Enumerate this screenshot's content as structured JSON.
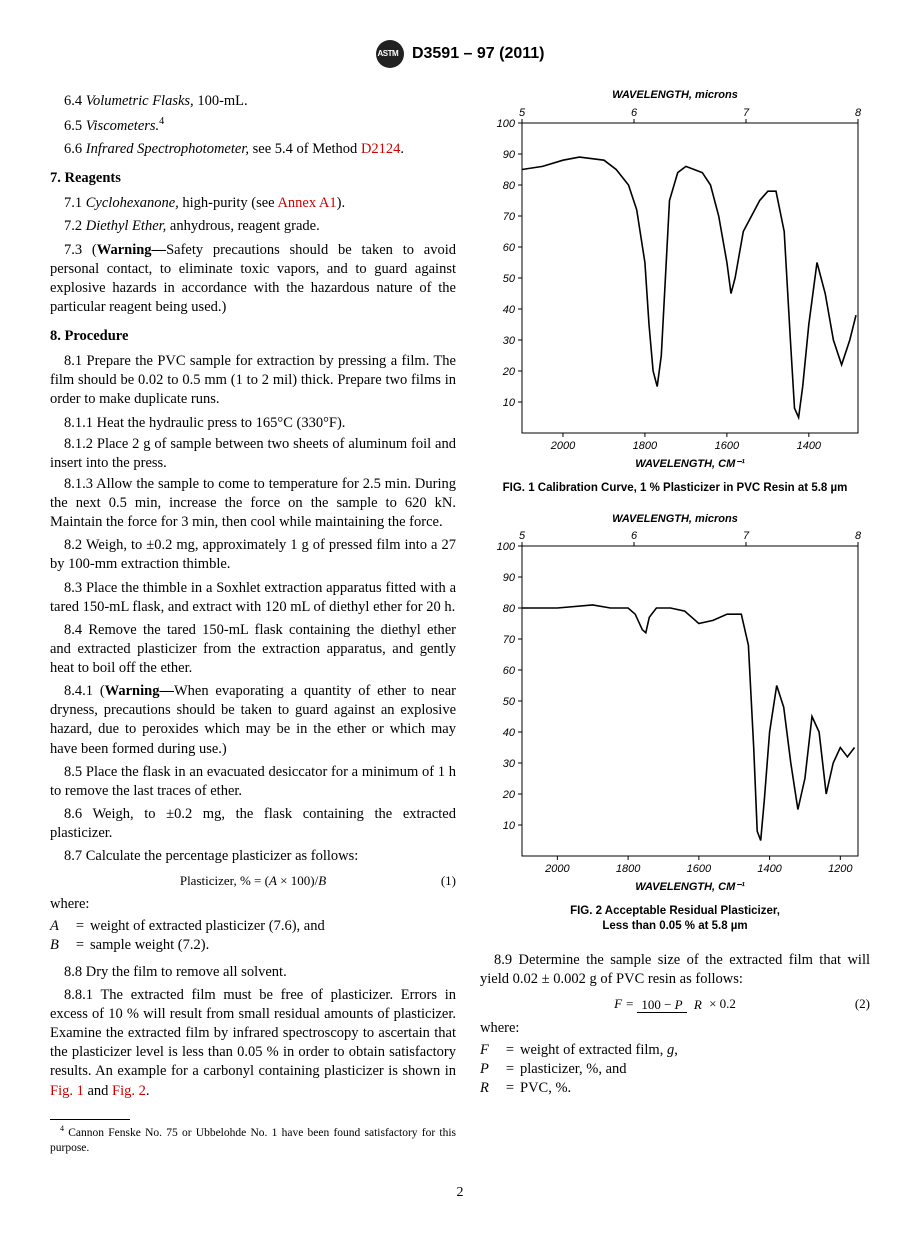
{
  "header": {
    "designation": "D3591 – 97 (2011)"
  },
  "left": {
    "p64": {
      "num": "6.4",
      "label": "Volumetric Flasks,",
      "rest": " 100-mL."
    },
    "p65": {
      "num": "6.5",
      "label": "Viscometers.",
      "sup": "4"
    },
    "p66": {
      "num": "6.6",
      "label": "Infrared Spectrophotometer,",
      "rest": " see 5.4 of Method ",
      "link": "D2124",
      "end": "."
    },
    "s7": {
      "title": "7.  Reagents"
    },
    "p71": {
      "num": "7.1",
      "label": "Cyclohexanone,",
      "rest": " high-purity (see ",
      "link": "Annex A1",
      "end": ")."
    },
    "p72": {
      "num": "7.2",
      "label": "Diethyl Ether,",
      "rest": " anhydrous, reagent grade."
    },
    "p73": {
      "num": "7.3",
      "text": "(Warning—Safety precautions should be taken to avoid personal contact, to eliminate toxic vapors, and to guard against explosive hazards in accordance with the hazardous nature of the particular reagent being used.)"
    },
    "s8": {
      "title": "8.  Procedure"
    },
    "p81": {
      "num": "8.1",
      "text": "Prepare the PVC sample for extraction by pressing a film. The film should be 0.02 to 0.5 mm (1 to 2 mil) thick. Prepare two films in order to make duplicate runs."
    },
    "p811": {
      "num": "8.1.1",
      "text": "Heat the hydraulic press to 165°C (330°F)."
    },
    "p812": {
      "num": "8.1.2",
      "text": "Place 2 g of sample between two sheets of aluminum foil and insert into the press."
    },
    "p813": {
      "num": "8.1.3",
      "text": "Allow the sample to come to temperature for 2.5 min. During the next 0.5 min, increase the force on the sample to 620 kN. Maintain the force for 3 min, then cool while maintaining the force."
    },
    "p82": {
      "num": "8.2",
      "text": "Weigh, to ±0.2 mg, approximately 1 g of pressed film into a 27 by 100-mm extraction thimble."
    },
    "p83": {
      "num": "8.3",
      "text": "Place the thimble in a Soxhlet extraction apparatus fitted with a tared 150-mL flask, and extract with 120 mL of diethyl ether for 20 h."
    },
    "p84": {
      "num": "8.4",
      "text": "Remove the tared 150-mL flask containing the diethyl ether and extracted plasticizer from the extraction apparatus, and gently heat to boil off the ether."
    },
    "p841": {
      "num": "8.4.1",
      "text": "(Warning—When evaporating a quantity of ether to near dryness, precautions should be taken to guard against an explosive hazard, due to peroxides which may be in the ether or which may have been formed during use.)"
    },
    "p85": {
      "num": "8.5",
      "text": "Place the flask in an evacuated desiccator for a minimum of 1 h to remove the last traces of ether."
    },
    "p86": {
      "num": "8.6",
      "text": "Weigh, to ±0.2 mg, the flask containing the extracted plasticizer."
    },
    "p87": {
      "num": "8.7",
      "text": "Calculate the percentage plasticizer as follows:"
    },
    "eq1": {
      "text": "Plasticizer, % = (A × 100)/B",
      "num": "(1)"
    },
    "where1": "where:",
    "varA": {
      "sym": "A",
      "def": "weight of extracted plasticizer (7.6), and"
    },
    "varB": {
      "sym": "B",
      "def": "sample weight (7.2)."
    },
    "p88": {
      "num": "8.8",
      "text": "Dry the film to remove all solvent."
    },
    "p881": {
      "num": "8.8.1",
      "text_a": "The extracted film must be free of plasticizer. Errors in excess of 10 % will result from small residual amounts of plasticizer. Examine the extracted film by infrared spectroscopy to ascertain that the plasticizer level is less than 0.05 % in order to obtain satisfactory results. An example for a carbonyl containing plasticizer is shown in ",
      "link1": "Fig. 1",
      "mid": " and ",
      "link2": "Fig. 2",
      "end": "."
    },
    "footnote4": "Cannon Fenske No. 75 or Ubbelohde No. 1 have been found satisfactory for this purpose."
  },
  "right": {
    "wavelength_label": "WAVELENGTH, microns",
    "wavenumber_label": "WAVELENGTH, CM⁻¹",
    "fig1_caption": "FIG. 1 Calibration Curve, 1 % Plasticizer in PVC Resin at 5.8 µm",
    "fig2_caption_l1": "FIG. 2 Acceptable Residual Plasticizer,",
    "fig2_caption_l2": "Less than 0.05 % at 5.8 µm",
    "chart1": {
      "type": "line",
      "top_ticks": [
        5,
        6,
        7,
        8
      ],
      "x_ticks": [
        2000,
        1800,
        1600,
        1400
      ],
      "x_range": [
        2100,
        1280
      ],
      "y_ticks": [
        10,
        20,
        30,
        40,
        50,
        60,
        70,
        80,
        90,
        100
      ],
      "y_range": [
        0,
        100
      ],
      "line_color": "#000000",
      "line_width": 1.6,
      "background": "#ffffff",
      "points": [
        [
          2100,
          85
        ],
        [
          2050,
          86
        ],
        [
          2000,
          88
        ],
        [
          1960,
          89
        ],
        [
          1900,
          88
        ],
        [
          1870,
          85
        ],
        [
          1840,
          80
        ],
        [
          1820,
          72
        ],
        [
          1800,
          55
        ],
        [
          1790,
          35
        ],
        [
          1780,
          20
        ],
        [
          1770,
          15
        ],
        [
          1760,
          25
        ],
        [
          1750,
          50
        ],
        [
          1740,
          75
        ],
        [
          1720,
          84
        ],
        [
          1700,
          86
        ],
        [
          1680,
          85
        ],
        [
          1660,
          84
        ],
        [
          1640,
          80
        ],
        [
          1620,
          70
        ],
        [
          1600,
          55
        ],
        [
          1590,
          45
        ],
        [
          1580,
          50
        ],
        [
          1560,
          65
        ],
        [
          1540,
          70
        ],
        [
          1520,
          75
        ],
        [
          1500,
          78
        ],
        [
          1480,
          78
        ],
        [
          1460,
          65
        ],
        [
          1445,
          30
        ],
        [
          1435,
          8
        ],
        [
          1425,
          5
        ],
        [
          1415,
          15
        ],
        [
          1400,
          35
        ],
        [
          1380,
          55
        ],
        [
          1360,
          45
        ],
        [
          1340,
          30
        ],
        [
          1320,
          22
        ],
        [
          1300,
          30
        ],
        [
          1285,
          38
        ]
      ]
    },
    "chart2": {
      "type": "line",
      "top_ticks": [
        5,
        6,
        7,
        8
      ],
      "x_ticks": [
        2000,
        1800,
        1600,
        1400,
        1200
      ],
      "x_range": [
        2100,
        1150
      ],
      "y_ticks": [
        10,
        20,
        30,
        40,
        50,
        60,
        70,
        80,
        90,
        100
      ],
      "y_range": [
        0,
        100
      ],
      "line_color": "#000000",
      "line_width": 1.6,
      "background": "#ffffff",
      "points": [
        [
          2100,
          80
        ],
        [
          2000,
          80
        ],
        [
          1900,
          81
        ],
        [
          1850,
          80
        ],
        [
          1800,
          80
        ],
        [
          1780,
          78
        ],
        [
          1760,
          73
        ],
        [
          1750,
          72
        ],
        [
          1740,
          77
        ],
        [
          1720,
          80
        ],
        [
          1700,
          80
        ],
        [
          1680,
          80
        ],
        [
          1640,
          79
        ],
        [
          1620,
          77
        ],
        [
          1600,
          75
        ],
        [
          1560,
          76
        ],
        [
          1520,
          78
        ],
        [
          1480,
          78
        ],
        [
          1460,
          68
        ],
        [
          1445,
          35
        ],
        [
          1435,
          8
        ],
        [
          1425,
          5
        ],
        [
          1415,
          18
        ],
        [
          1400,
          40
        ],
        [
          1380,
          55
        ],
        [
          1360,
          48
        ],
        [
          1340,
          30
        ],
        [
          1320,
          15
        ],
        [
          1300,
          25
        ],
        [
          1280,
          45
        ],
        [
          1260,
          40
        ],
        [
          1240,
          20
        ],
        [
          1220,
          30
        ],
        [
          1200,
          35
        ],
        [
          1180,
          32
        ],
        [
          1160,
          35
        ]
      ]
    },
    "p89": {
      "num": "8.9",
      "text": "Determine the sample size of the extracted film that will yield 0.02 ± 0.002 g of PVC resin as follows:"
    },
    "eq2": {
      "num_txt": "100 − P",
      "den_txt": "R",
      "tail": " × 0.2",
      "lhs": "F = ",
      "eqnum": "(2)"
    },
    "where2": "where:",
    "varF": {
      "sym": "F",
      "def": "weight of extracted film, g,"
    },
    "varP": {
      "sym": "P",
      "def": "plasticizer, %, and"
    },
    "varR": {
      "sym": "R",
      "def": "PVC, %."
    }
  },
  "page_number": "2"
}
